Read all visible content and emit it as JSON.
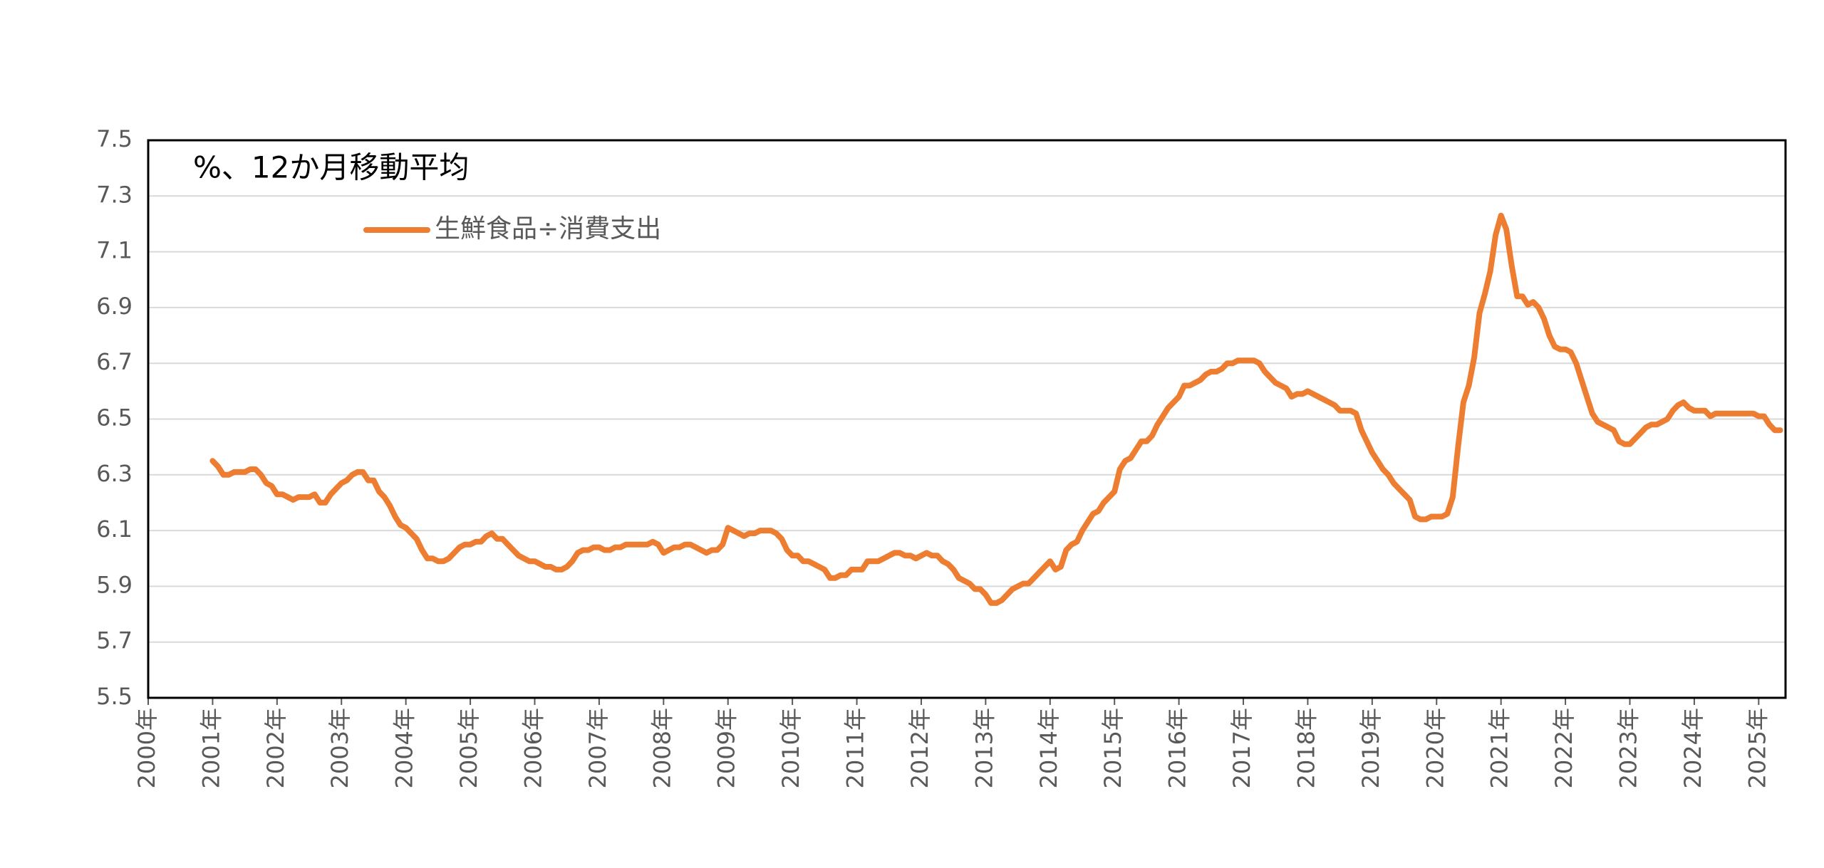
{
  "chart_data": {
    "type": "line",
    "title": "%、12か月移動平均",
    "categories": [
      "2000年",
      null,
      null,
      null,
      null,
      null,
      null,
      null,
      null,
      null,
      null,
      null,
      "2001年",
      null,
      null,
      null,
      null,
      null,
      null,
      null,
      null,
      null,
      null,
      null,
      "2002年",
      null,
      null,
      null,
      null,
      null,
      null,
      null,
      null,
      null,
      null,
      null,
      "2003年",
      null,
      null,
      null,
      null,
      null,
      null,
      null,
      null,
      null,
      null,
      null,
      "2004年",
      null,
      null,
      null,
      null,
      null,
      null,
      null,
      null,
      null,
      null,
      null,
      "2005年",
      null,
      null,
      null,
      null,
      null,
      null,
      null,
      null,
      null,
      null,
      null,
      "2006年",
      null,
      null,
      null,
      null,
      null,
      null,
      null,
      null,
      null,
      null,
      null,
      "2007年",
      null,
      null,
      null,
      null,
      null,
      null,
      null,
      null,
      null,
      null,
      null,
      "2008年",
      null,
      null,
      null,
      null,
      null,
      null,
      null,
      null,
      null,
      null,
      null,
      "2009年",
      null,
      null,
      null,
      null,
      null,
      null,
      null,
      null,
      null,
      null,
      null,
      "2010年",
      null,
      null,
      null,
      null,
      null,
      null,
      null,
      null,
      null,
      null,
      null,
      "2011年",
      null,
      null,
      null,
      null,
      null,
      null,
      null,
      null,
      null,
      null,
      null,
      "2012年",
      null,
      null,
      null,
      null,
      null,
      null,
      null,
      null,
      null,
      null,
      null,
      "2013年",
      null,
      null,
      null,
      null,
      null,
      null,
      null,
      null,
      null,
      null,
      null,
      "2014年",
      null,
      null,
      null,
      null,
      null,
      null,
      null,
      null,
      null,
      null,
      null,
      "2015年",
      null,
      null,
      null,
      null,
      null,
      null,
      null,
      null,
      null,
      null,
      null,
      "2016年",
      null,
      null,
      null,
      null,
      null,
      null,
      null,
      null,
      null,
      null,
      null,
      "2017年",
      null,
      null,
      null,
      null,
      null,
      null,
      null,
      null,
      null,
      null,
      null,
      "2018年",
      null,
      null,
      null,
      null,
      null,
      null,
      null,
      null,
      null,
      null,
      null,
      "2019年",
      null,
      null,
      null,
      null,
      null,
      null,
      null,
      null,
      null,
      null,
      null,
      "2020年",
      null,
      null,
      null,
      null,
      null,
      null,
      null,
      null,
      null,
      null,
      null,
      "2021年",
      null,
      null,
      null,
      null,
      null,
      null,
      null,
      null,
      null,
      null,
      null,
      "2022年",
      null,
      null,
      null,
      null,
      null,
      null,
      null,
      null,
      null,
      null,
      null,
      "2023年",
      null,
      null,
      null,
      null,
      null,
      null,
      null,
      null,
      null,
      null,
      null,
      "2024年",
      null,
      null,
      null,
      null,
      null,
      null,
      null,
      null,
      null,
      null,
      null,
      "2025年",
      null,
      null,
      null,
      null
    ],
    "series": [
      {
        "name": "生鮮食品÷消費支出",
        "color": "#ed7d31",
        "values": [
          null,
          null,
          null,
          null,
          null,
          null,
          null,
          null,
          null,
          null,
          null,
          null,
          6.35,
          6.33,
          6.3,
          6.3,
          6.31,
          6.31,
          6.31,
          6.32,
          6.32,
          6.3,
          6.27,
          6.26,
          6.23,
          6.23,
          6.22,
          6.21,
          6.22,
          6.22,
          6.22,
          6.23,
          6.2,
          6.2,
          6.23,
          6.25,
          6.27,
          6.28,
          6.3,
          6.31,
          6.31,
          6.28,
          6.28,
          6.24,
          6.22,
          6.19,
          6.15,
          6.12,
          6.11,
          6.09,
          6.07,
          6.03,
          6.0,
          6.0,
          5.99,
          5.99,
          6.0,
          6.02,
          6.04,
          6.05,
          6.05,
          6.06,
          6.06,
          6.08,
          6.09,
          6.07,
          6.07,
          6.05,
          6.03,
          6.01,
          6.0,
          5.99,
          5.99,
          5.98,
          5.97,
          5.97,
          5.96,
          5.96,
          5.97,
          5.99,
          6.02,
          6.03,
          6.03,
          6.04,
          6.04,
          6.03,
          6.03,
          6.04,
          6.04,
          6.05,
          6.05,
          6.05,
          6.05,
          6.05,
          6.06,
          6.05,
          6.02,
          6.03,
          6.04,
          6.04,
          6.05,
          6.05,
          6.04,
          6.03,
          6.02,
          6.03,
          6.03,
          6.05,
          6.11,
          6.1,
          6.09,
          6.08,
          6.09,
          6.09,
          6.1,
          6.1,
          6.1,
          6.09,
          6.07,
          6.03,
          6.01,
          6.01,
          5.99,
          5.99,
          5.98,
          5.97,
          5.96,
          5.93,
          5.93,
          5.94,
          5.94,
          5.96,
          5.96,
          5.96,
          5.99,
          5.99,
          5.99,
          6.0,
          6.01,
          6.02,
          6.02,
          6.01,
          6.01,
          6.0,
          6.01,
          6.02,
          6.01,
          6.01,
          5.99,
          5.98,
          5.96,
          5.93,
          5.92,
          5.91,
          5.89,
          5.89,
          5.87,
          5.84,
          5.84,
          5.85,
          5.87,
          5.89,
          5.9,
          5.91,
          5.91,
          5.93,
          5.95,
          5.97,
          5.99,
          5.96,
          5.97,
          6.03,
          6.05,
          6.06,
          6.1,
          6.13,
          6.16,
          6.17,
          6.2,
          6.22,
          6.24,
          6.32,
          6.35,
          6.36,
          6.39,
          6.42,
          6.42,
          6.44,
          6.48,
          6.51,
          6.54,
          6.56,
          6.58,
          6.62,
          6.62,
          6.63,
          6.64,
          6.66,
          6.67,
          6.67,
          6.68,
          6.7,
          6.7,
          6.71,
          6.71,
          6.71,
          6.71,
          6.7,
          6.67,
          6.65,
          6.63,
          6.62,
          6.61,
          6.58,
          6.59,
          6.59,
          6.6,
          6.59,
          6.58,
          6.57,
          6.56,
          6.55,
          6.53,
          6.53,
          6.53,
          6.52,
          6.46,
          6.42,
          6.38,
          6.35,
          6.32,
          6.3,
          6.27,
          6.25,
          6.23,
          6.21,
          6.15,
          6.14,
          6.14,
          6.15,
          6.15,
          6.15,
          6.16,
          6.22,
          6.4,
          6.56,
          6.62,
          6.72,
          6.88,
          6.95,
          7.03,
          7.16,
          7.23,
          7.18,
          7.05,
          6.94,
          6.94,
          6.91,
          6.92,
          6.9,
          6.86,
          6.8,
          6.76,
          6.75,
          6.75,
          6.74,
          6.7,
          6.64,
          6.58,
          6.52,
          6.49,
          6.48,
          6.47,
          6.46,
          6.42,
          6.41,
          6.41,
          6.43,
          6.45,
          6.47,
          6.48,
          6.48,
          6.49,
          6.5,
          6.53,
          6.55,
          6.56,
          6.54,
          6.53,
          6.53,
          6.53,
          6.51,
          6.52,
          6.52,
          6.52,
          6.52,
          6.52,
          6.52,
          6.52,
          6.52,
          6.51,
          6.51,
          6.48,
          6.46,
          6.46
        ]
      }
    ],
    "ylim": [
      5.5,
      7.5
    ],
    "yticks": [
      5.5,
      5.7,
      5.9,
      6.1,
      6.3,
      6.5,
      6.7,
      6.9,
      7.1,
      7.3,
      7.5
    ],
    "grid": true,
    "legend": "top-left"
  }
}
